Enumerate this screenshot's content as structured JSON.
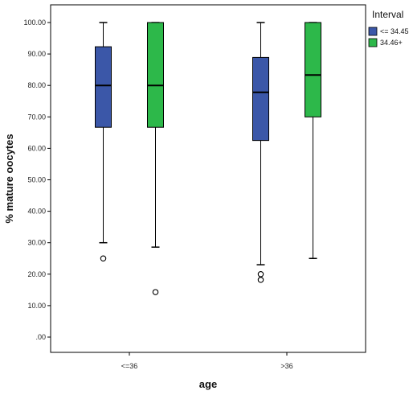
{
  "chart_data": {
    "type": "boxplot",
    "xlabel": "age",
    "ylabel": "% mature oocytes",
    "categories": [
      "<=36",
      ">36"
    ],
    "ylim": [
      0,
      105
    ],
    "yticks": [
      ".00",
      "10.00",
      "20.00",
      "30.00",
      "40.00",
      "50.00",
      "60.00",
      "70.00",
      "80.00",
      "90.00",
      "100.00"
    ],
    "ytick_values": [
      0,
      10,
      20,
      30,
      40,
      50,
      60,
      70,
      80,
      90,
      100
    ],
    "grid": false,
    "legend": {
      "title": "Interval",
      "position": "top-right"
    },
    "series": [
      {
        "name": "<= 34.45",
        "color": "#3B57A8",
        "boxes": [
          {
            "category": "<=36",
            "whisker_low": 30.0,
            "q1": 66.7,
            "median": 80.0,
            "q3": 92.3,
            "whisker_high": 100.0,
            "outliers": [
              25.0
            ]
          },
          {
            "category": ">36",
            "whisker_low": 23.0,
            "q1": 62.5,
            "median": 77.8,
            "q3": 88.9,
            "whisker_high": 100.0,
            "outliers": [
              18.2,
              20.0
            ]
          }
        ]
      },
      {
        "name": "34.46+",
        "color": "#2DB84A",
        "boxes": [
          {
            "category": "<=36",
            "whisker_low": 28.6,
            "q1": 66.7,
            "median": 80.0,
            "q3": 100.0,
            "whisker_high": 100.0,
            "outliers": [
              14.3
            ]
          },
          {
            "category": ">36",
            "whisker_low": 25.0,
            "q1": 70.0,
            "median": 83.3,
            "q3": 100.0,
            "whisker_high": 100.0,
            "outliers": []
          }
        ]
      }
    ]
  }
}
